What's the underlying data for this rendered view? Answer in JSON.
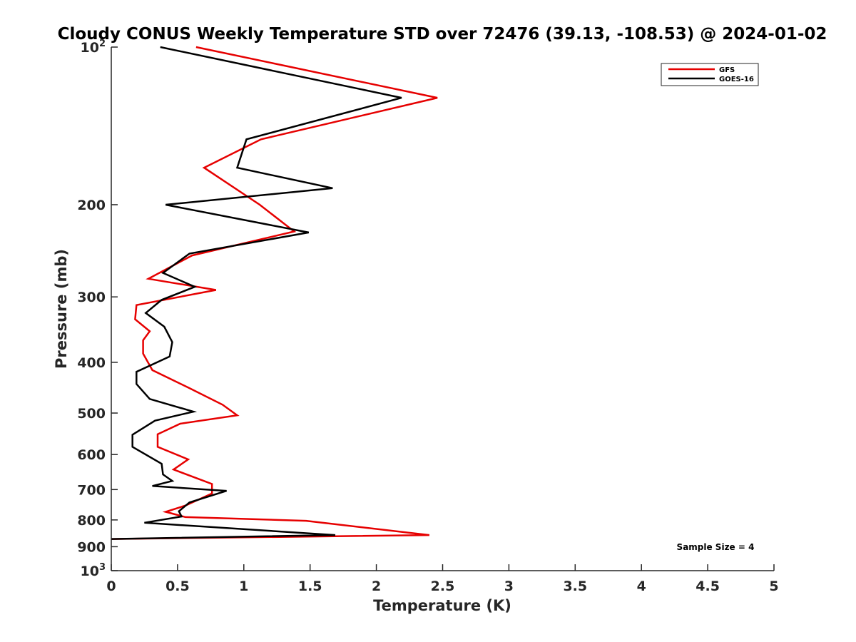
{
  "chart_data": {
    "type": "line",
    "title": "Cloudy CONUS Weekly Temperature STD over 72476 (39.13, -108.53) @ 2024-01-02",
    "xlabel": "Temperature (K)",
    "ylabel": "Pressure (mb)",
    "xlim": [
      0,
      5
    ],
    "ylim": [
      100,
      1000
    ],
    "y_scale": "log",
    "y_reversed": true,
    "x_ticks": [
      "0",
      "0.5",
      "1",
      "1.5",
      "2",
      "2.5",
      "3",
      "3.5",
      "4",
      "4.5",
      "5"
    ],
    "y_ticks": [
      {
        "value": 100,
        "base": "10",
        "exp": "2"
      },
      {
        "value": 200,
        "label": "200"
      },
      {
        "value": 300,
        "label": "300"
      },
      {
        "value": 400,
        "label": "400"
      },
      {
        "value": 500,
        "label": "500"
      },
      {
        "value": 600,
        "label": "600"
      },
      {
        "value": 700,
        "label": "700"
      },
      {
        "value": 800,
        "label": "800"
      },
      {
        "value": 900,
        "label": "900"
      },
      {
        "value": 1000,
        "base": "10",
        "exp": "3"
      }
    ],
    "grid": false,
    "legend_position": "top-right",
    "annotation": "Sample Size = 4",
    "series": [
      {
        "name": "GFS",
        "color": "#e60000",
        "points": [
          [
            0.64,
            100
          ],
          [
            2.46,
            125
          ],
          [
            1.13,
            150
          ],
          [
            0.7,
            170
          ],
          [
            1.12,
            200
          ],
          [
            1.38,
            225
          ],
          [
            0.61,
            250
          ],
          [
            0.28,
            277
          ],
          [
            0.79,
            291
          ],
          [
            0.19,
            311
          ],
          [
            0.18,
            331
          ],
          [
            0.29,
            349
          ],
          [
            0.24,
            363
          ],
          [
            0.24,
            385
          ],
          [
            0.31,
            414
          ],
          [
            0.58,
            447
          ],
          [
            0.84,
            482
          ],
          [
            0.95,
            505
          ],
          [
            0.52,
            524
          ],
          [
            0.35,
            549
          ],
          [
            0.35,
            580
          ],
          [
            0.58,
            613
          ],
          [
            0.47,
            641
          ],
          [
            0.76,
            683
          ],
          [
            0.76,
            712
          ],
          [
            0.56,
            751
          ],
          [
            0.41,
            772
          ],
          [
            0.56,
            790
          ],
          [
            1.47,
            803
          ],
          [
            2.4,
            855
          ],
          [
            0.0,
            870
          ]
        ]
      },
      {
        "name": "GOES-16",
        "color": "#000000",
        "points": [
          [
            0.37,
            100
          ],
          [
            2.19,
            125
          ],
          [
            1.02,
            150
          ],
          [
            0.95,
            170
          ],
          [
            1.67,
            186
          ],
          [
            0.41,
            200
          ],
          [
            1.49,
            226
          ],
          [
            0.59,
            248
          ],
          [
            0.39,
            270
          ],
          [
            0.63,
            287
          ],
          [
            0.38,
            304
          ],
          [
            0.26,
            322
          ],
          [
            0.4,
            342
          ],
          [
            0.46,
            366
          ],
          [
            0.44,
            390
          ],
          [
            0.19,
            417
          ],
          [
            0.19,
            440
          ],
          [
            0.29,
            470
          ],
          [
            0.62,
            497
          ],
          [
            0.33,
            517
          ],
          [
            0.16,
            550
          ],
          [
            0.16,
            580
          ],
          [
            0.38,
            625
          ],
          [
            0.39,
            655
          ],
          [
            0.46,
            674
          ],
          [
            0.31,
            689
          ],
          [
            0.87,
            704
          ],
          [
            0.59,
            741
          ],
          [
            0.51,
            770
          ],
          [
            0.53,
            788
          ],
          [
            0.25,
            810
          ],
          [
            1.69,
            855
          ],
          [
            0.0,
            870
          ]
        ]
      }
    ]
  }
}
